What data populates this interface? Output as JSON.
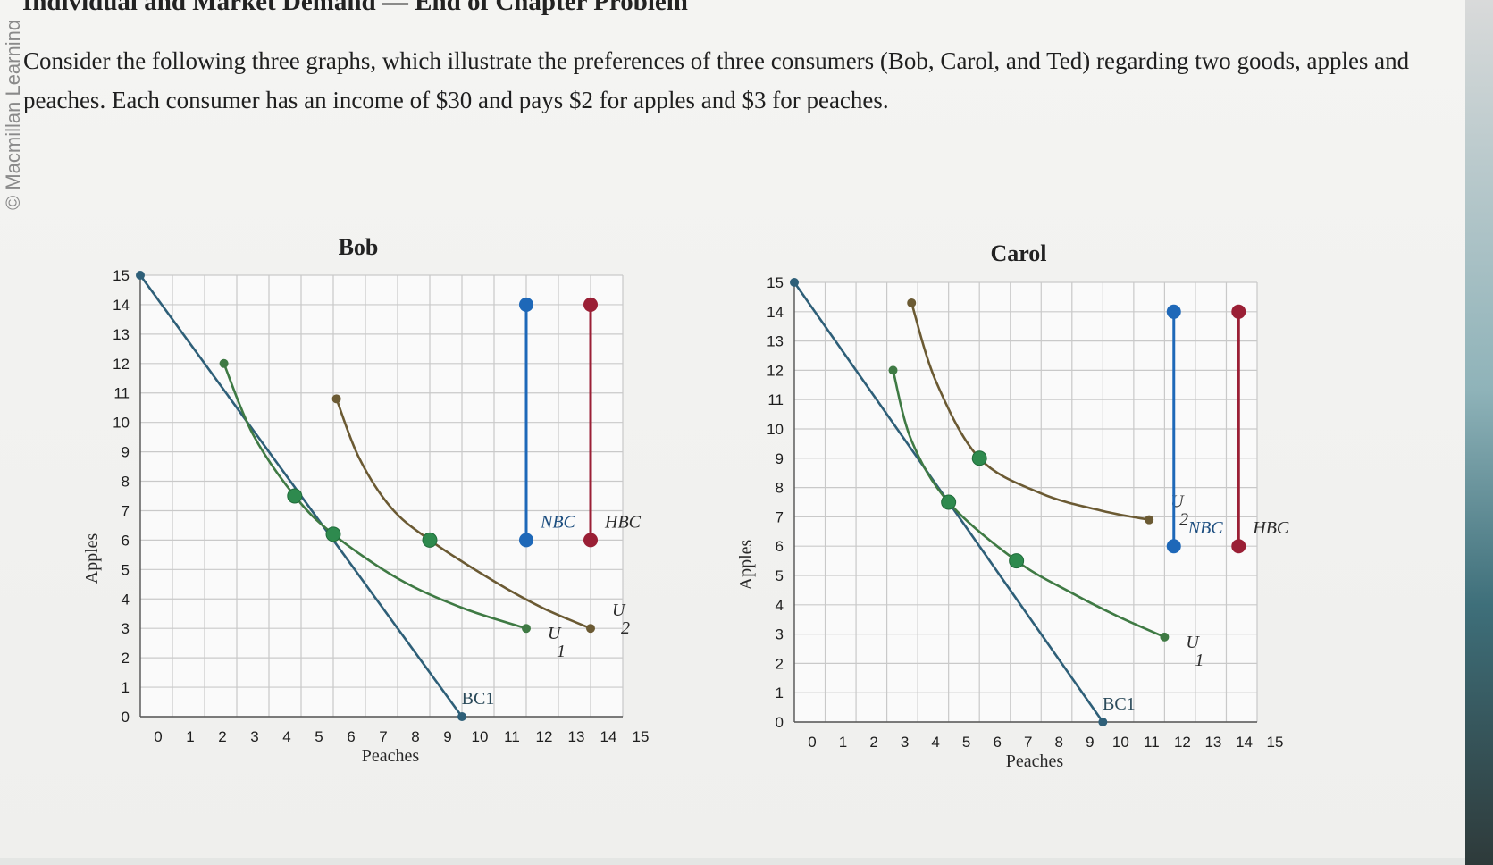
{
  "page": {
    "credit": "© Macmillan Learning",
    "chapter_title": "Individual and Market Demand — End of Chapter Problem",
    "problem_text": "Consider the following three graphs, which illustrate the preferences of three consumers (Bob, Carol, and Ted) regarding two goods, apples and peaches. Each consumer has an income of $30 and pays $2 for apples and $3 for peaches."
  },
  "colors": {
    "budget": "#2e5f78",
    "u1": "#3f7a44",
    "u2": "#6b5a33",
    "nbc": "#1e68b8",
    "hbc": "#9a1f35",
    "point": "#2e8a4e"
  },
  "chart_data": [
    {
      "type": "line",
      "title": "Bob",
      "xlabel": "Peaches",
      "ylabel": "Apples",
      "xlim": [
        0,
        15
      ],
      "ylim": [
        0,
        15
      ],
      "xticks": [
        "0",
        "1",
        "2",
        "3",
        "4",
        "5",
        "6",
        "7",
        "8",
        "9",
        "10",
        "11",
        "12",
        "13",
        "14",
        "15"
      ],
      "yticks": [
        "0",
        "1",
        "2",
        "3",
        "4",
        "5",
        "6",
        "7",
        "8",
        "9",
        "10",
        "11",
        "12",
        "13",
        "14",
        "15"
      ],
      "grid": true,
      "series": [
        {
          "name": "BC1",
          "label": "BC1",
          "kind": "budget",
          "points": [
            [
              0,
              15
            ],
            [
              10,
              0
            ]
          ]
        },
        {
          "name": "U1",
          "label_main": "U",
          "label_sub": "1",
          "kind": "u1",
          "points": [
            [
              2.6,
              12
            ],
            [
              3.5,
              9.6
            ],
            [
              4.8,
              7.5
            ],
            [
              6,
              6.2
            ],
            [
              8,
              4.7
            ],
            [
              10,
              3.7
            ],
            [
              12,
              3
            ]
          ]
        },
        {
          "name": "U2",
          "label_main": "U",
          "label_sub": "2",
          "kind": "u2",
          "points": [
            [
              6.1,
              10.8
            ],
            [
              6.8,
              8.8
            ],
            [
              7.8,
              7.1
            ],
            [
              9,
              6
            ],
            [
              11,
              4.6
            ],
            [
              12.5,
              3.7
            ],
            [
              14,
              3
            ]
          ]
        }
      ],
      "markers": [
        {
          "x": 4.8,
          "y": 7.5
        },
        {
          "x": 6,
          "y": 6.2
        },
        {
          "x": 9,
          "y": 6
        }
      ],
      "vertical_bars": [
        {
          "label": "NBC",
          "kind": "nbc",
          "x": 12,
          "y0": 6,
          "y1": 14
        },
        {
          "label": "HBC",
          "kind": "hbc",
          "x": 14,
          "y0": 6,
          "y1": 14
        }
      ]
    },
    {
      "type": "line",
      "title": "Carol",
      "xlabel": "Peaches",
      "ylabel": "Apples",
      "xlim": [
        0,
        15
      ],
      "ylim": [
        0,
        15
      ],
      "xticks": [
        "0",
        "1",
        "2",
        "3",
        "4",
        "5",
        "6",
        "7",
        "8",
        "9",
        "10",
        "11",
        "12",
        "13",
        "14",
        "15"
      ],
      "yticks": [
        "0",
        "1",
        "2",
        "3",
        "4",
        "5",
        "6",
        "7",
        "8",
        "9",
        "10",
        "11",
        "12",
        "13",
        "14",
        "15"
      ],
      "grid": true,
      "series": [
        {
          "name": "BC1",
          "label": "BC1",
          "kind": "budget",
          "points": [
            [
              0,
              15
            ],
            [
              10,
              0
            ]
          ]
        },
        {
          "name": "U1",
          "label_main": "U",
          "label_sub": "1",
          "kind": "u1",
          "points": [
            [
              3.2,
              12
            ],
            [
              3.8,
              9.6
            ],
            [
              5,
              7.5
            ],
            [
              7.2,
              5.5
            ],
            [
              9,
              4.4
            ],
            [
              10.5,
              3.6
            ],
            [
              12,
              2.9
            ]
          ]
        },
        {
          "name": "U2",
          "label_main": "U",
          "label_sub": "2",
          "kind": "u2",
          "points": [
            [
              3.8,
              14.3
            ],
            [
              4.6,
              11.6
            ],
            [
              6,
              9
            ],
            [
              8,
              7.8
            ],
            [
              10,
              7.2
            ],
            [
              11.5,
              6.9
            ]
          ]
        }
      ],
      "markers": [
        {
          "x": 5,
          "y": 7.5
        },
        {
          "x": 7.2,
          "y": 5.5
        },
        {
          "x": 6,
          "y": 9
        }
      ],
      "vertical_bars": [
        {
          "label": "NBC",
          "kind": "nbc",
          "x": 12.3,
          "y0": 6,
          "y1": 14
        },
        {
          "label": "HBC",
          "kind": "hbc",
          "x": 14.4,
          "y0": 6,
          "y1": 14
        }
      ]
    }
  ]
}
